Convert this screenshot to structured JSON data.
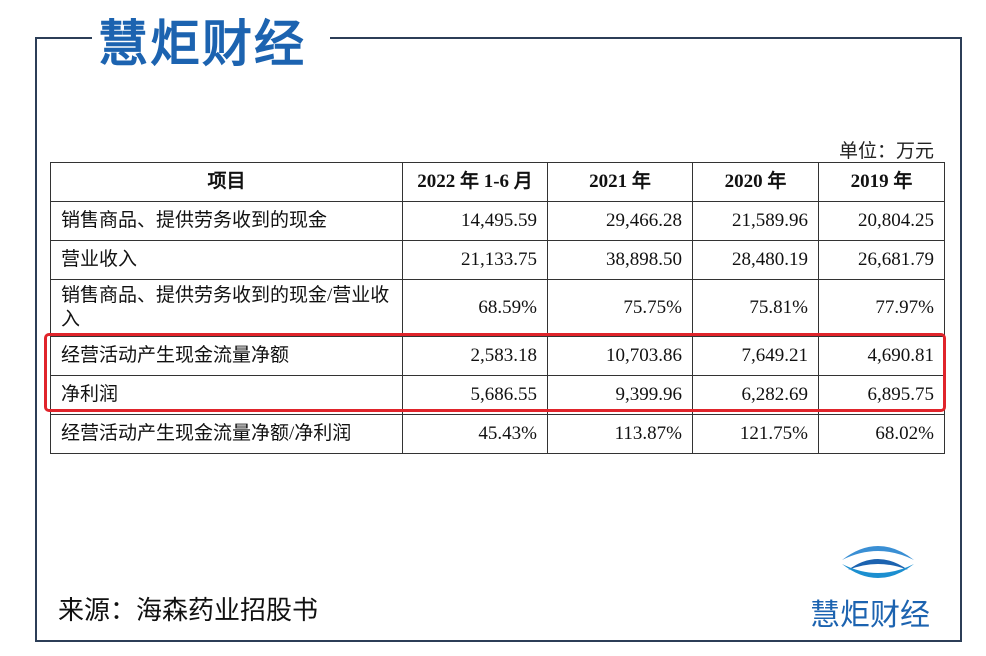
{
  "header": {
    "logo": "慧炬财经"
  },
  "unit": "单位：万元",
  "table": {
    "headers": [
      "项目",
      "2022 年 1-6 月",
      "2021 年",
      "2020 年",
      "2019 年"
    ],
    "rows": [
      [
        "销售商品、提供劳务收到的现金",
        "14,495.59",
        "29,466.28",
        "21,589.96",
        "20,804.25"
      ],
      [
        "营业收入",
        "21,133.75",
        "38,898.50",
        "28,480.19",
        "26,681.79"
      ],
      [
        "销售商品、提供劳务收到的现金/营业收入",
        "68.59%",
        "75.75%",
        "75.81%",
        "77.97%"
      ],
      [
        "经营活动产生现金流量净额",
        "2,583.18",
        "10,703.86",
        "7,649.21",
        "4,690.81"
      ],
      [
        "净利润",
        "5,686.55",
        "9,399.96",
        "6,282.69",
        "6,895.75"
      ],
      [
        "经营活动产生现金流量净额/净利润",
        "45.43%",
        "113.87%",
        "121.75%",
        "68.02%"
      ]
    ]
  },
  "source": "来源：海森药业招股书",
  "footer": {
    "logo": "慧炬财经"
  }
}
